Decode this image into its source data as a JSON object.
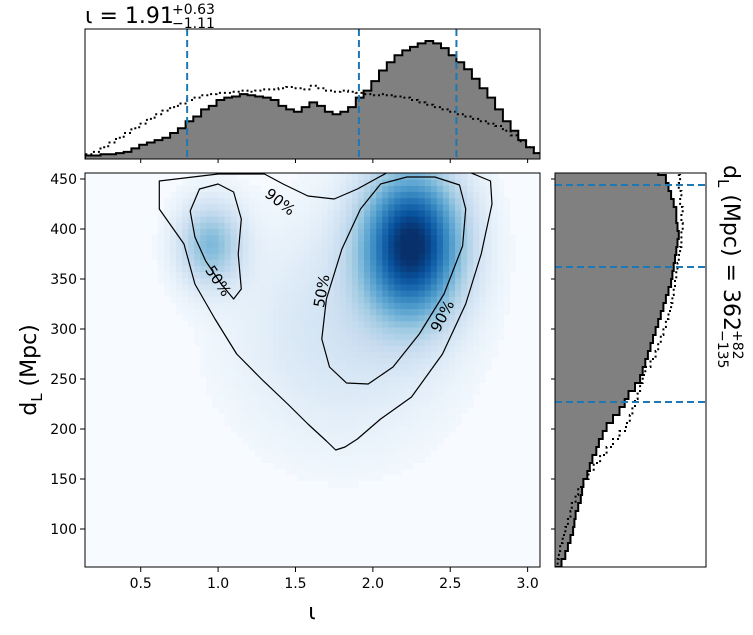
{
  "chart_data": {
    "type": "heatmap",
    "panels": [
      "joint",
      "marginal-top",
      "marginal-right"
    ],
    "x_axis": {
      "label": "ι",
      "range": [
        0.14,
        3.08
      ],
      "ticks": [
        0.5,
        1.0,
        1.5,
        2.0,
        2.5,
        3.0
      ],
      "tick_labels": [
        "0.5",
        "1.0",
        "1.5",
        "2.0",
        "2.5",
        "3.0"
      ]
    },
    "y_axis": {
      "label": "d",
      "label_subscript": "L",
      "label_unit": " (Mpc)",
      "range": [
        62,
        456
      ],
      "ticks": [
        100,
        150,
        200,
        250,
        300,
        350,
        400,
        450
      ],
      "tick_labels": [
        "100",
        "150",
        "200",
        "250",
        "300",
        "350",
        "400",
        "450"
      ]
    },
    "top_summary": {
      "symbol": "ι",
      "equals": " = ",
      "median": "1.91",
      "upper": "+0.63",
      "lower": "−1.11",
      "lines": [
        0.8,
        1.91,
        2.54
      ]
    },
    "right_summary": {
      "symbol": "d",
      "subscript": "L",
      "unit": " (Mpc) = ",
      "median": "362",
      "upper": "+82",
      "lower": "−135",
      "lines": [
        227,
        362,
        444
      ]
    },
    "density_peaks": [
      {
        "x": 2.25,
        "y": 385,
        "height": 1.0,
        "sx": 0.22,
        "sy": 50
      },
      {
        "x": 0.95,
        "y": 385,
        "height": 0.38,
        "sx": 0.14,
        "sy": 28
      },
      {
        "x": 1.8,
        "y": 300,
        "height": 0.13,
        "sx": 0.45,
        "sy": 75
      }
    ],
    "contours": [
      {
        "label": "90%",
        "points": [
          [
            1.0,
            455
          ],
          [
            0.62,
            448
          ],
          [
            0.62,
            420
          ],
          [
            0.78,
            385
          ],
          [
            0.85,
            345
          ],
          [
            0.98,
            310
          ],
          [
            1.12,
            275
          ],
          [
            1.28,
            250
          ],
          [
            1.45,
            225
          ],
          [
            1.58,
            205
          ],
          [
            1.7,
            188
          ],
          [
            1.76,
            179
          ],
          [
            1.82,
            182
          ],
          [
            1.9,
            190
          ],
          [
            2.05,
            210
          ],
          [
            2.25,
            232
          ],
          [
            2.45,
            275
          ],
          [
            2.6,
            325
          ],
          [
            2.7,
            375
          ],
          [
            2.77,
            425
          ],
          [
            2.76,
            448
          ],
          [
            2.62,
            457
          ],
          [
            2.1,
            457
          ],
          [
            1.9,
            440
          ],
          [
            1.75,
            430
          ],
          [
            1.58,
            433
          ],
          [
            1.42,
            445
          ],
          [
            1.3,
            455
          ]
        ]
      },
      {
        "label": "50%",
        "points": [
          [
            0.88,
            440
          ],
          [
            0.82,
            418
          ],
          [
            0.85,
            392
          ],
          [
            0.92,
            368
          ],
          [
            1.02,
            345
          ],
          [
            1.1,
            330
          ],
          [
            1.15,
            340
          ],
          [
            1.13,
            375
          ],
          [
            1.15,
            410
          ],
          [
            1.1,
            437
          ],
          [
            1.0,
            445
          ]
        ]
      },
      {
        "label": "50%",
        "points": [
          [
            1.92,
            420
          ],
          [
            1.8,
            380
          ],
          [
            1.7,
            330
          ],
          [
            1.67,
            290
          ],
          [
            1.72,
            262
          ],
          [
            1.83,
            246
          ],
          [
            1.97,
            245
          ],
          [
            2.13,
            262
          ],
          [
            2.3,
            295
          ],
          [
            2.46,
            335
          ],
          [
            2.58,
            383
          ],
          [
            2.6,
            420
          ],
          [
            2.56,
            444
          ],
          [
            2.4,
            452
          ],
          [
            2.22,
            452
          ],
          [
            2.05,
            445
          ]
        ]
      }
    ],
    "contour_labels": [
      {
        "text": "90%",
        "x": 1.4,
        "y": 427,
        "angle": 38
      },
      {
        "text": "50%",
        "x": 1.0,
        "y": 348,
        "angle": 56
      },
      {
        "text": "50%",
        "x": 1.67,
        "y": 338,
        "angle": -80
      },
      {
        "text": "90%",
        "x": 2.45,
        "y": 313,
        "angle": -62
      }
    ],
    "top_hist": {
      "edges_start": 0.14,
      "edges_step": 0.05,
      "posterior": [
        3,
        3,
        4,
        4,
        5,
        6,
        9,
        12,
        14,
        16,
        18,
        22,
        26,
        32,
        36,
        42,
        45,
        50,
        52,
        53,
        55,
        54,
        53,
        52,
        50,
        45,
        42,
        40,
        44,
        48,
        45,
        40,
        38,
        40,
        44,
        52,
        58,
        66,
        75,
        82,
        88,
        92,
        95,
        98,
        100,
        98,
        94,
        88,
        82,
        76,
        68,
        60,
        52,
        42,
        32,
        24,
        16,
        10,
        5
      ],
      "prior": [
        4,
        6,
        10,
        14,
        18,
        22,
        26,
        30,
        34,
        38,
        41,
        44,
        47,
        50,
        52,
        54,
        55,
        56,
        56,
        57,
        58,
        57,
        58,
        59,
        59,
        60,
        61,
        60,
        59,
        62,
        60,
        58,
        57,
        58,
        57,
        56,
        55,
        54,
        55,
        54,
        53,
        52,
        50,
        48,
        46,
        44,
        42,
        40,
        38,
        36,
        34,
        32,
        30,
        28,
        24,
        20,
        15,
        10,
        5
      ]
    },
    "right_hist": {
      "edges_start": 62,
      "edges_step": 8,
      "posterior": [
        5,
        8,
        10,
        12,
        14,
        15,
        16,
        18,
        20,
        21,
        22,
        25,
        27,
        29,
        32,
        34,
        37,
        40,
        45,
        50,
        54,
        57,
        62,
        66,
        68,
        70,
        72,
        74,
        76,
        78,
        80,
        82,
        84,
        86,
        88,
        90,
        91,
        92,
        93,
        94,
        95,
        96,
        95,
        94,
        94,
        92,
        90,
        88,
        86,
        80
      ],
      "prior": [
        2,
        3,
        4,
        6,
        8,
        10,
        12,
        13,
        16,
        18,
        22,
        26,
        30,
        35,
        40,
        45,
        50,
        55,
        58,
        60,
        62,
        64,
        66,
        68,
        70,
        74,
        78,
        80,
        82,
        84,
        86,
        88,
        90,
        91,
        92,
        93,
        94,
        95,
        96,
        97,
        98,
        98,
        99,
        98,
        99,
        97,
        98,
        96,
        97,
        96
      ]
    }
  }
}
